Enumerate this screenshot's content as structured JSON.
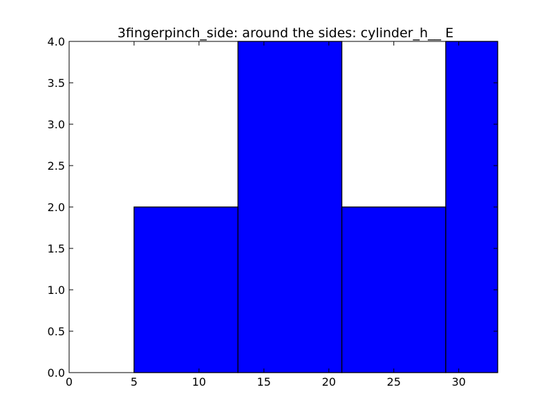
{
  "chart_data": {
    "type": "bar",
    "title": "3fingerpinch_side: around the sides: cylinder_h__ E",
    "xlabel": "",
    "ylabel": "",
    "xlim": [
      0,
      33
    ],
    "ylim": [
      0,
      4.0
    ],
    "bins": [
      {
        "x0": 0,
        "x1": 5,
        "value": 0
      },
      {
        "x0": 5,
        "x1": 13,
        "value": 2
      },
      {
        "x0": 13,
        "x1": 21,
        "value": 4
      },
      {
        "x0": 21,
        "x1": 29,
        "value": 2
      },
      {
        "x0": 29,
        "x1": 33,
        "value": 4
      }
    ],
    "x_ticks": [
      0,
      5,
      10,
      15,
      20,
      25,
      30
    ],
    "x_tick_labels": [
      "0",
      "5",
      "10",
      "15",
      "20",
      "25",
      "30"
    ],
    "y_ticks": [
      0,
      0.5,
      1.0,
      1.5,
      2.0,
      2.5,
      3.0,
      3.5,
      4.0
    ],
    "y_tick_labels": [
      "0.0",
      "0.5",
      "1.0",
      "1.5",
      "2.0",
      "2.5",
      "3.0",
      "3.5",
      "4.0"
    ],
    "bar_color": "#0000ff",
    "edge_color": "#000000",
    "grid": false,
    "legend": false
  }
}
